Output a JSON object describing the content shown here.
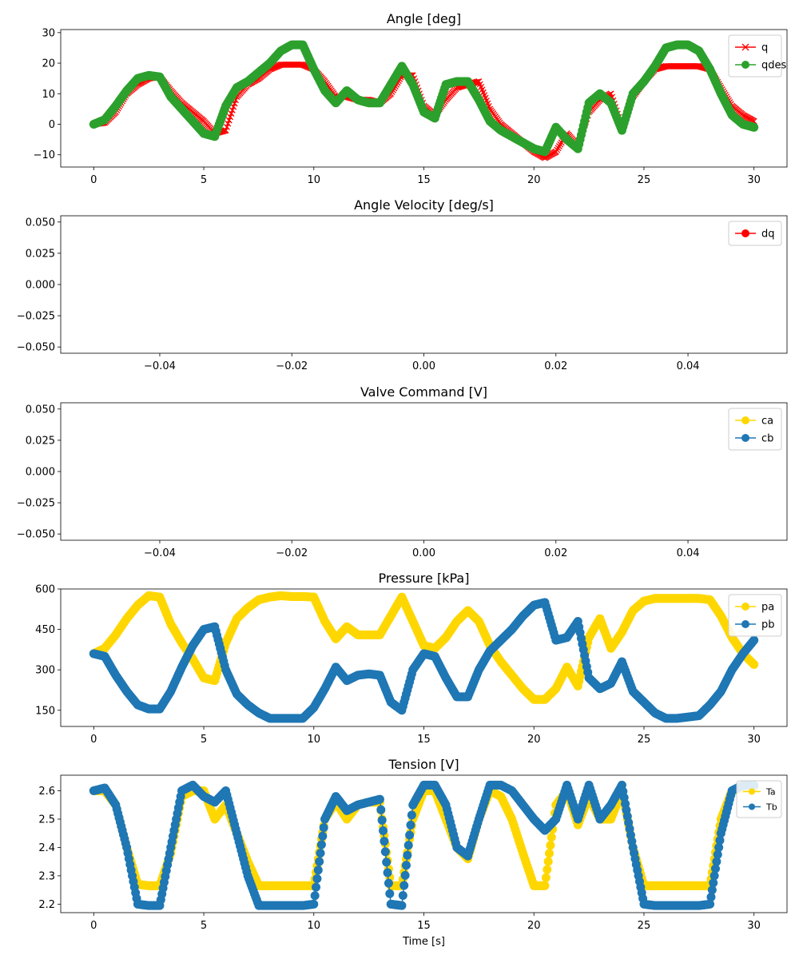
{
  "chart_data": [
    {
      "type": "line",
      "title": "Angle [deg]",
      "xlim": [
        -1.5,
        31.5
      ],
      "ylim": [
        -14,
        31
      ],
      "xticks": [
        0,
        5,
        10,
        15,
        20,
        25,
        30
      ],
      "yticks": [
        -10,
        0,
        10,
        20,
        30
      ],
      "ytick_labels": [
        "−10",
        "0",
        "10",
        "20",
        "30"
      ],
      "legend_position": "upper-right",
      "series": [
        {
          "name": "q",
          "color": "#ff0000",
          "marker": "x",
          "x": [
            0,
            0.5,
            1,
            1.5,
            2,
            2.5,
            3,
            3.5,
            4,
            4.5,
            5,
            5.5,
            6,
            6.5,
            7,
            7.5,
            8,
            8.5,
            9,
            9.5,
            10,
            10.5,
            11,
            11.5,
            12,
            12.5,
            13,
            13.5,
            14,
            14.5,
            15,
            15.5,
            16,
            16.5,
            17,
            17.5,
            18,
            18.5,
            19,
            19.5,
            20,
            20.5,
            21,
            21.5,
            22,
            22.5,
            23,
            23.5,
            24,
            24.5,
            25,
            25.5,
            26,
            26.5,
            27,
            27.5,
            28,
            28.5,
            29,
            29.5,
            30
          ],
          "y": [
            0,
            0.5,
            4,
            10,
            13,
            15,
            15.5,
            11,
            7,
            4,
            1,
            -3,
            -2,
            9,
            13,
            15,
            18,
            19.5,
            19.5,
            19.5,
            18,
            14,
            9,
            9,
            8,
            8,
            7,
            10,
            16,
            16,
            6,
            3,
            8,
            12,
            13,
            14,
            5,
            0,
            -3,
            -6,
            -9,
            -11,
            -9,
            -3,
            -7,
            4,
            8,
            10,
            -1,
            9,
            14,
            18,
            19,
            19,
            19,
            19,
            18,
            12,
            6,
            3,
            1
          ]
        },
        {
          "name": "qdes",
          "color": "#2ca02c",
          "marker": "o",
          "x": [
            0,
            0.5,
            1,
            1.5,
            2,
            2.5,
            3,
            3.5,
            4,
            4.5,
            5,
            5.5,
            6,
            6.5,
            7,
            7.5,
            8,
            8.5,
            9,
            9.5,
            10,
            10.5,
            11,
            11.5,
            12,
            12.5,
            13,
            13.5,
            14,
            14.5,
            15,
            15.5,
            16,
            16.5,
            17,
            17.5,
            18,
            18.5,
            19,
            19.5,
            20,
            20.5,
            21,
            21.5,
            22,
            22.5,
            23,
            23.5,
            24,
            24.5,
            25,
            25.5,
            26,
            26.5,
            27,
            27.5,
            28,
            28.5,
            29,
            29.5,
            30
          ],
          "y": [
            0,
            1.5,
            6,
            11,
            15,
            16,
            15.5,
            9,
            5,
            1,
            -3,
            -4,
            6,
            12,
            14,
            17,
            20,
            24,
            26,
            26,
            18,
            11,
            7,
            11,
            8,
            7,
            7,
            13,
            19,
            13,
            4,
            2,
            13,
            14,
            14,
            8,
            1,
            -2,
            -4,
            -6,
            -8,
            -9,
            -1,
            -5,
            -8,
            7,
            10,
            7,
            -2,
            10,
            14,
            19,
            25,
            26,
            26,
            24,
            18,
            10,
            3,
            0,
            -1
          ]
        }
      ]
    },
    {
      "type": "line",
      "title": "Angle Velocity [deg/s]",
      "xlim": [
        -0.055,
        0.055
      ],
      "ylim": [
        -0.055,
        0.055
      ],
      "xticks": [
        -0.04,
        -0.02,
        0.0,
        0.02,
        0.04
      ],
      "xtick_labels": [
        "−0.04",
        "−0.02",
        "0.00",
        "0.02",
        "0.04"
      ],
      "yticks": [
        0.05,
        0.025,
        0.0,
        -0.025,
        -0.05
      ],
      "ytick_labels": [
        "0.050",
        "0.025",
        "0.000",
        "−0.025",
        "−0.050"
      ],
      "legend_position": "upper-right",
      "series": [
        {
          "name": "dq",
          "color": "#ff0000",
          "marker": "o",
          "x": [],
          "y": []
        }
      ]
    },
    {
      "type": "line",
      "title": "Valve Command [V]",
      "xlim": [
        -0.055,
        0.055
      ],
      "ylim": [
        -0.055,
        0.055
      ],
      "xticks": [
        -0.04,
        -0.02,
        0.0,
        0.02,
        0.04
      ],
      "xtick_labels": [
        "−0.04",
        "−0.02",
        "0.00",
        "0.02",
        "0.04"
      ],
      "yticks": [
        0.05,
        0.025,
        0.0,
        -0.025,
        -0.05
      ],
      "ytick_labels": [
        "0.050",
        "0.025",
        "0.000",
        "−0.025",
        "−0.050"
      ],
      "legend_position": "upper-right",
      "series": [
        {
          "name": "ca",
          "color": "#ffd700",
          "marker": "o",
          "x": [],
          "y": []
        },
        {
          "name": "cb",
          "color": "#1f77b4",
          "marker": "o",
          "x": [],
          "y": []
        }
      ]
    },
    {
      "type": "line",
      "title": "Pressure [kPa]",
      "xlim": [
        -1.5,
        31.5
      ],
      "ylim": [
        90,
        600
      ],
      "xticks": [
        0,
        5,
        10,
        15,
        20,
        25,
        30
      ],
      "yticks": [
        150,
        300,
        450,
        600
      ],
      "legend_position": "upper-right",
      "series": [
        {
          "name": "pa",
          "color": "#ffd700",
          "marker": "o",
          "x": [
            0,
            0.5,
            1,
            1.5,
            2,
            2.5,
            3,
            3.5,
            4,
            4.5,
            5,
            5.5,
            6,
            6.5,
            7,
            7.5,
            8,
            8.5,
            9,
            9.5,
            10,
            10.5,
            11,
            11.5,
            12,
            12.5,
            13,
            13.5,
            14,
            14.5,
            15,
            15.5,
            16,
            16.5,
            17,
            17.5,
            18,
            18.5,
            19,
            19.5,
            20,
            20.5,
            21,
            21.5,
            22,
            22.5,
            23,
            23.5,
            24,
            24.5,
            25,
            25.5,
            26,
            26.5,
            27,
            27.5,
            28,
            28.5,
            29,
            29.5,
            30
          ],
          "y": [
            360,
            380,
            430,
            490,
            540,
            575,
            570,
            470,
            400,
            340,
            270,
            260,
            400,
            490,
            530,
            560,
            570,
            575,
            572,
            572,
            570,
            480,
            415,
            460,
            430,
            430,
            430,
            500,
            570,
            480,
            390,
            380,
            420,
            480,
            520,
            480,
            390,
            330,
            280,
            230,
            190,
            190,
            230,
            310,
            240,
            420,
            490,
            380,
            440,
            520,
            555,
            565,
            565,
            565,
            565,
            565,
            560,
            500,
            420,
            360,
            320
          ]
        },
        {
          "name": "pb",
          "color": "#1f77b4",
          "marker": "o",
          "x": [
            0,
            0.5,
            1,
            1.5,
            2,
            2.5,
            3,
            3.5,
            4,
            4.5,
            5,
            5.5,
            6,
            6.5,
            7,
            7.5,
            8,
            8.5,
            9,
            9.5,
            10,
            10.5,
            11,
            11.5,
            12,
            12.5,
            13,
            13.5,
            14,
            14.5,
            15,
            15.5,
            16,
            16.5,
            17,
            17.5,
            18,
            18.5,
            19,
            19.5,
            20,
            20.5,
            21,
            21.5,
            22,
            22.5,
            23,
            23.5,
            24,
            24.5,
            25,
            25.5,
            26,
            26.5,
            27,
            27.5,
            28,
            28.5,
            29,
            29.5,
            30
          ],
          "y": [
            360,
            350,
            280,
            220,
            170,
            155,
            155,
            220,
            310,
            390,
            450,
            460,
            300,
            210,
            170,
            140,
            120,
            120,
            120,
            120,
            160,
            230,
            310,
            260,
            280,
            285,
            280,
            180,
            150,
            300,
            360,
            350,
            270,
            200,
            200,
            300,
            370,
            410,
            450,
            500,
            540,
            550,
            410,
            420,
            480,
            270,
            230,
            250,
            330,
            220,
            180,
            140,
            120,
            120,
            125,
            130,
            170,
            220,
            300,
            360,
            410
          ]
        }
      ]
    },
    {
      "type": "line",
      "title": "Tension [V]",
      "xlabel": "Time [s]",
      "xlim": [
        -1.5,
        31.5
      ],
      "ylim": [
        2.17,
        2.655
      ],
      "xticks": [
        0,
        5,
        10,
        15,
        20,
        25,
        30
      ],
      "yticks": [
        2.2,
        2.3,
        2.4,
        2.5,
        2.6
      ],
      "legend_position": "upper-right",
      "series": [
        {
          "name": "Ta",
          "color": "#ffd700",
          "marker": "o",
          "x": [
            0,
            0.5,
            1,
            1.5,
            2,
            2.5,
            3,
            3.5,
            4,
            4.5,
            5,
            5.5,
            6,
            6.5,
            7,
            7.5,
            8,
            8.5,
            9,
            9.5,
            10,
            10.5,
            11,
            11.5,
            12,
            12.5,
            13,
            13.5,
            14,
            14.5,
            15,
            15.5,
            16,
            16.5,
            17,
            17.5,
            18,
            18.5,
            19,
            19.5,
            20,
            20.5,
            21,
            21.5,
            22,
            22.5,
            23,
            23.5,
            24,
            24.5,
            25,
            25.5,
            26,
            26.5,
            27,
            27.5,
            28,
            28.5,
            29,
            29.5,
            30
          ],
          "y": [
            2.6,
            2.6,
            2.55,
            2.4,
            2.27,
            2.265,
            2.265,
            2.38,
            2.58,
            2.6,
            2.6,
            2.5,
            2.55,
            2.45,
            2.35,
            2.265,
            2.265,
            2.265,
            2.265,
            2.265,
            2.265,
            2.5,
            2.56,
            2.5,
            2.55,
            2.56,
            2.56,
            2.265,
            2.265,
            2.5,
            2.6,
            2.6,
            2.5,
            2.4,
            2.36,
            2.5,
            2.6,
            2.58,
            2.5,
            2.38,
            2.265,
            2.265,
            2.55,
            2.6,
            2.48,
            2.58,
            2.5,
            2.5,
            2.6,
            2.4,
            2.265,
            2.265,
            2.265,
            2.265,
            2.265,
            2.265,
            2.265,
            2.5,
            2.6,
            2.61,
            2.61
          ]
        },
        {
          "name": "Tb",
          "color": "#1f77b4",
          "marker": "o",
          "x": [
            0,
            0.5,
            1,
            1.5,
            2,
            2.5,
            3,
            3.5,
            4,
            4.5,
            5,
            5.5,
            6,
            6.5,
            7,
            7.5,
            8,
            8.5,
            9,
            9.5,
            10,
            10.5,
            11,
            11.5,
            12,
            12.5,
            13,
            13.5,
            14,
            14.5,
            15,
            15.5,
            16,
            16.5,
            17,
            17.5,
            18,
            18.5,
            19,
            19.5,
            20,
            20.5,
            21,
            21.5,
            22,
            22.5,
            23,
            23.5,
            24,
            24.5,
            25,
            25.5,
            26,
            26.5,
            27,
            27.5,
            28,
            28.5,
            29,
            29.5,
            30
          ],
          "y": [
            2.6,
            2.61,
            2.55,
            2.4,
            2.2,
            2.195,
            2.195,
            2.4,
            2.6,
            2.62,
            2.58,
            2.56,
            2.6,
            2.45,
            2.3,
            2.195,
            2.195,
            2.195,
            2.195,
            2.195,
            2.2,
            2.5,
            2.58,
            2.53,
            2.55,
            2.56,
            2.57,
            2.2,
            2.195,
            2.55,
            2.62,
            2.62,
            2.55,
            2.4,
            2.37,
            2.5,
            2.62,
            2.62,
            2.6,
            2.55,
            2.5,
            2.46,
            2.5,
            2.62,
            2.5,
            2.62,
            2.5,
            2.55,
            2.62,
            2.4,
            2.2,
            2.195,
            2.195,
            2.195,
            2.195,
            2.195,
            2.2,
            2.45,
            2.6,
            2.62,
            2.62
          ]
        }
      ]
    }
  ]
}
